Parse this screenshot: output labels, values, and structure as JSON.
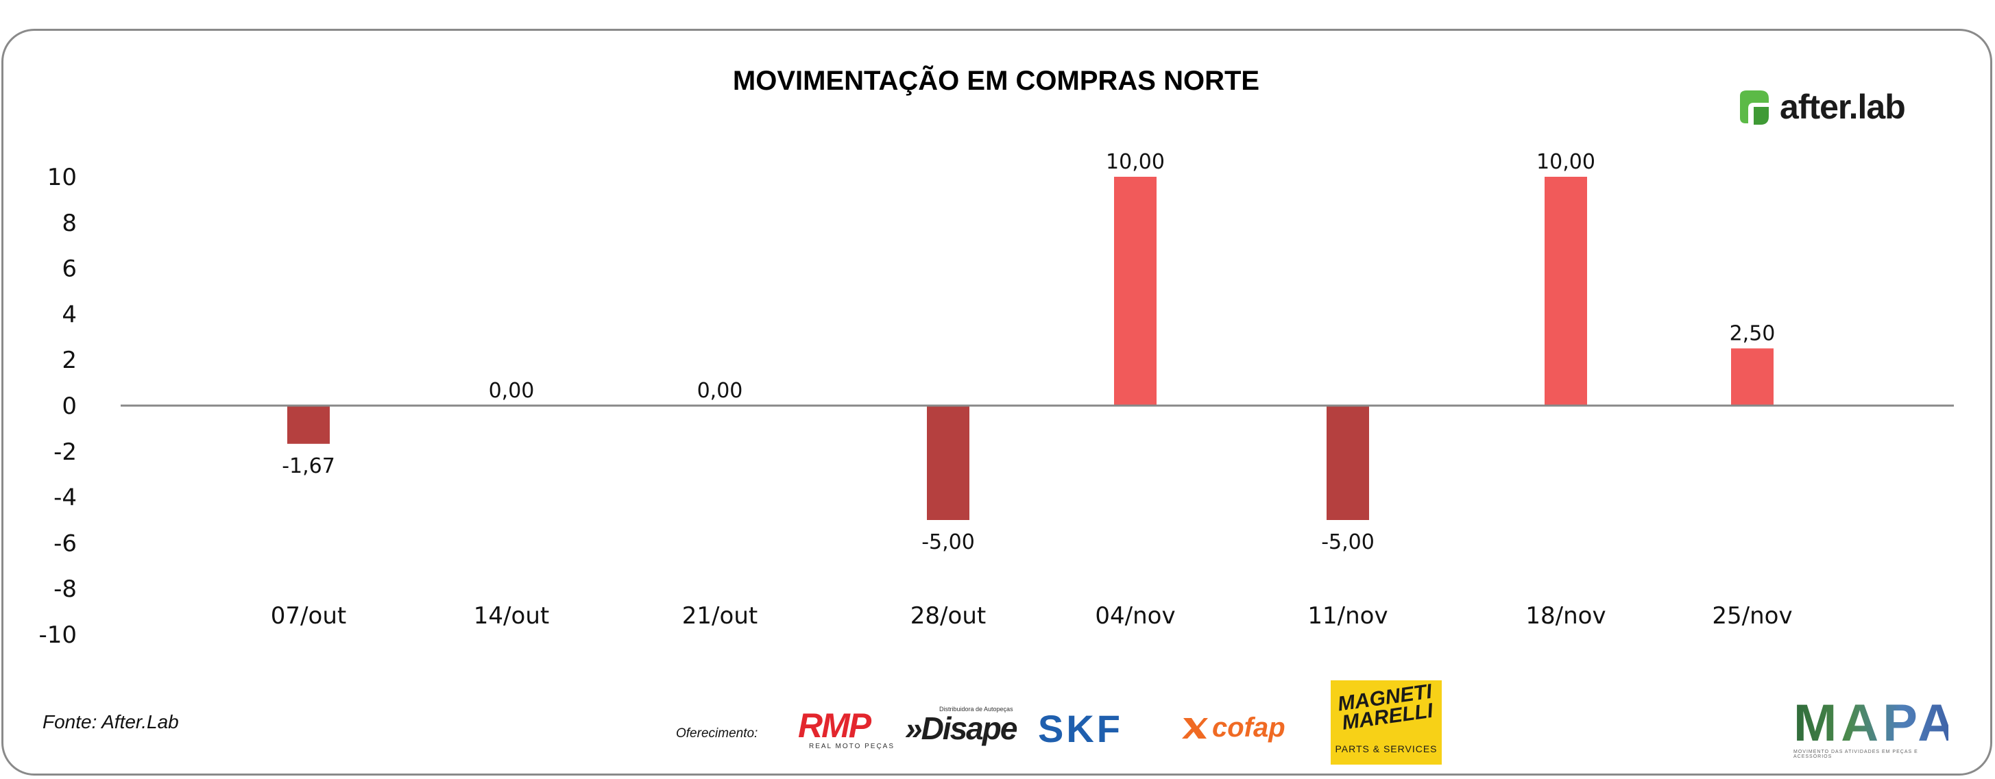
{
  "chart_data": {
    "type": "bar",
    "title": "MOVIMENTAÇÃO EM COMPRAS NORTE",
    "xlabel": "",
    "ylabel": "",
    "ylim": [
      -10,
      10
    ],
    "yticks": [
      "10",
      "8",
      "6",
      "4",
      "2",
      "0",
      "-2",
      "-4",
      "-6",
      "-8",
      "-10"
    ],
    "yticks_values": [
      10,
      8,
      6,
      4,
      2,
      0,
      -2,
      -4,
      -6,
      -8,
      -10
    ],
    "categories": [
      "07/out",
      "14/out",
      "21/out",
      "28/out",
      "04/nov",
      "11/nov",
      "18/nov",
      "25/nov"
    ],
    "values": [
      -1.67,
      0.0,
      0.0,
      -5.0,
      10.0,
      -5.0,
      10.0,
      2.5
    ],
    "data_labels": [
      "-1,67",
      "0,00",
      "0,00",
      "-5,00",
      "10,00",
      "-5,00",
      "10,00",
      "2,50"
    ],
    "grid": false,
    "legend": "none",
    "colors": {
      "positive": "#f15a5a",
      "negative": "#b5403f",
      "axis": "#888888"
    }
  },
  "brand": {
    "logo_text": "after.lab",
    "logo_color": "#5cba47"
  },
  "footer": {
    "source": "Fonte: After.Lab",
    "sponsor_label": "Oferecimento:",
    "sponsors": {
      "rmp": "RMP",
      "rmp_sub": "REAL MOTO PEÇAS",
      "disape_tag": "Distribuidora de Autopeças",
      "disape": "»Disape",
      "skf": "SKF",
      "cofap": "cofap",
      "magneti": "MAGNETI MARELLI",
      "magneti_sub": "PARTS & SERVICES"
    },
    "mapa": "MAPA",
    "mapa_sub": "MOVIMENTO DAS ATIVIDADES EM PEÇAS E ACESSÓRIOS"
  }
}
